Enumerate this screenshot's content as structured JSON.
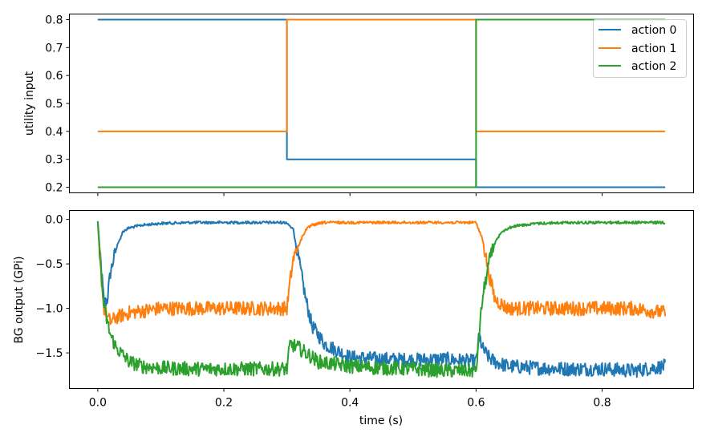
{
  "chart_data": [
    {
      "type": "line",
      "panel": "top",
      "title": "",
      "xlabel": "",
      "ylabel": "utility input",
      "xlim": [
        -0.045,
        0.945
      ],
      "ylim": [
        0.18,
        0.82
      ],
      "xticks": [
        0.0,
        0.2,
        0.4,
        0.6,
        0.8
      ],
      "xtick_labels_visible": false,
      "yticks": [
        0.2,
        0.3,
        0.4,
        0.5,
        0.6,
        0.7,
        0.8
      ],
      "ytick_labels": [
        "0.2",
        "0.3",
        "0.4",
        "0.5",
        "0.6",
        "0.7",
        "0.8"
      ],
      "grid": false,
      "legend": {
        "position": "top-right"
      },
      "series": [
        {
          "name": "action 0",
          "color": "#1f77b4",
          "x": [
            0.0,
            0.3,
            0.3,
            0.6,
            0.6,
            0.9
          ],
          "y": [
            0.8,
            0.8,
            0.3,
            0.3,
            0.2,
            0.2
          ]
        },
        {
          "name": "action 1",
          "color": "#ff7f0e",
          "x": [
            0.0,
            0.3,
            0.3,
            0.6,
            0.6,
            0.9
          ],
          "y": [
            0.4,
            0.4,
            0.8,
            0.8,
            0.4,
            0.4
          ]
        },
        {
          "name": "action 2",
          "color": "#2ca02c",
          "x": [
            0.0,
            0.3,
            0.3,
            0.6,
            0.6,
            0.9
          ],
          "y": [
            0.2,
            0.2,
            0.2,
            0.2,
            0.8,
            0.8
          ]
        }
      ]
    },
    {
      "type": "line",
      "panel": "bottom",
      "title": "",
      "xlabel": "time (s)",
      "ylabel": "BG output (GPi)",
      "xlim": [
        -0.045,
        0.945
      ],
      "ylim": [
        -1.9,
        0.1
      ],
      "xticks": [
        0.0,
        0.2,
        0.4,
        0.6,
        0.8
      ],
      "xtick_labels": [
        "0.0",
        "0.2",
        "0.4",
        "0.6",
        "0.8"
      ],
      "yticks": [
        0.0,
        -0.5,
        -1.0,
        -1.5
      ],
      "ytick_labels": [
        "0.0",
        "−0.5",
        "−1.0",
        "−1.5"
      ],
      "grid": false,
      "series": [
        {
          "name": "action 0",
          "color": "#1f77b4",
          "x": [
            0.0,
            0.005,
            0.01,
            0.015,
            0.02,
            0.03,
            0.04,
            0.05,
            0.07,
            0.1,
            0.15,
            0.2,
            0.25,
            0.3,
            0.31,
            0.32,
            0.33,
            0.34,
            0.36,
            0.4,
            0.45,
            0.5,
            0.55,
            0.6,
            0.605,
            0.61,
            0.62,
            0.63,
            0.65,
            0.7,
            0.75,
            0.8,
            0.85,
            0.9
          ],
          "y": [
            0.0,
            -0.5,
            -0.95,
            -0.9,
            -0.6,
            -0.3,
            -0.12,
            -0.08,
            -0.05,
            -0.03,
            -0.02,
            -0.02,
            -0.02,
            -0.02,
            -0.1,
            -0.5,
            -0.9,
            -1.2,
            -1.4,
            -1.55,
            -1.57,
            -1.58,
            -1.57,
            -1.6,
            -1.3,
            -1.45,
            -1.55,
            -1.6,
            -1.65,
            -1.67,
            -1.68,
            -1.68,
            -1.7,
            -1.65
          ],
          "noise": 0.05
        },
        {
          "name": "action 1",
          "color": "#ff7f0e",
          "x": [
            0.0,
            0.005,
            0.01,
            0.015,
            0.02,
            0.03,
            0.05,
            0.1,
            0.15,
            0.2,
            0.25,
            0.3,
            0.305,
            0.31,
            0.32,
            0.33,
            0.34,
            0.36,
            0.4,
            0.45,
            0.5,
            0.55,
            0.6,
            0.61,
            0.62,
            0.63,
            0.65,
            0.7,
            0.75,
            0.8,
            0.85,
            0.9
          ],
          "y": [
            0.0,
            -0.6,
            -1.0,
            -1.1,
            -1.15,
            -1.1,
            -1.05,
            -1.0,
            -1.0,
            -1.0,
            -1.0,
            -1.0,
            -0.7,
            -0.45,
            -0.25,
            -0.1,
            -0.05,
            -0.02,
            -0.02,
            -0.02,
            -0.02,
            -0.02,
            -0.02,
            -0.2,
            -0.6,
            -0.9,
            -1.0,
            -1.0,
            -1.0,
            -1.0,
            -1.0,
            -1.05
          ],
          "noise": 0.05
        },
        {
          "name": "action 2",
          "color": "#2ca02c",
          "x": [
            0.0,
            0.005,
            0.01,
            0.02,
            0.03,
            0.05,
            0.07,
            0.1,
            0.15,
            0.2,
            0.25,
            0.3,
            0.305,
            0.32,
            0.35,
            0.4,
            0.45,
            0.5,
            0.55,
            0.6,
            0.605,
            0.61,
            0.62,
            0.63,
            0.64,
            0.66,
            0.7,
            0.75,
            0.8,
            0.85,
            0.9
          ],
          "y": [
            0.0,
            -0.6,
            -1.0,
            -1.3,
            -1.45,
            -1.6,
            -1.65,
            -1.67,
            -1.68,
            -1.68,
            -1.68,
            -1.68,
            -1.4,
            -1.45,
            -1.6,
            -1.65,
            -1.67,
            -1.68,
            -1.7,
            -1.7,
            -1.3,
            -0.9,
            -0.5,
            -0.25,
            -0.12,
            -0.06,
            -0.03,
            -0.02,
            -0.02,
            -0.02,
            -0.02
          ],
          "noise": 0.05
        }
      ]
    }
  ]
}
